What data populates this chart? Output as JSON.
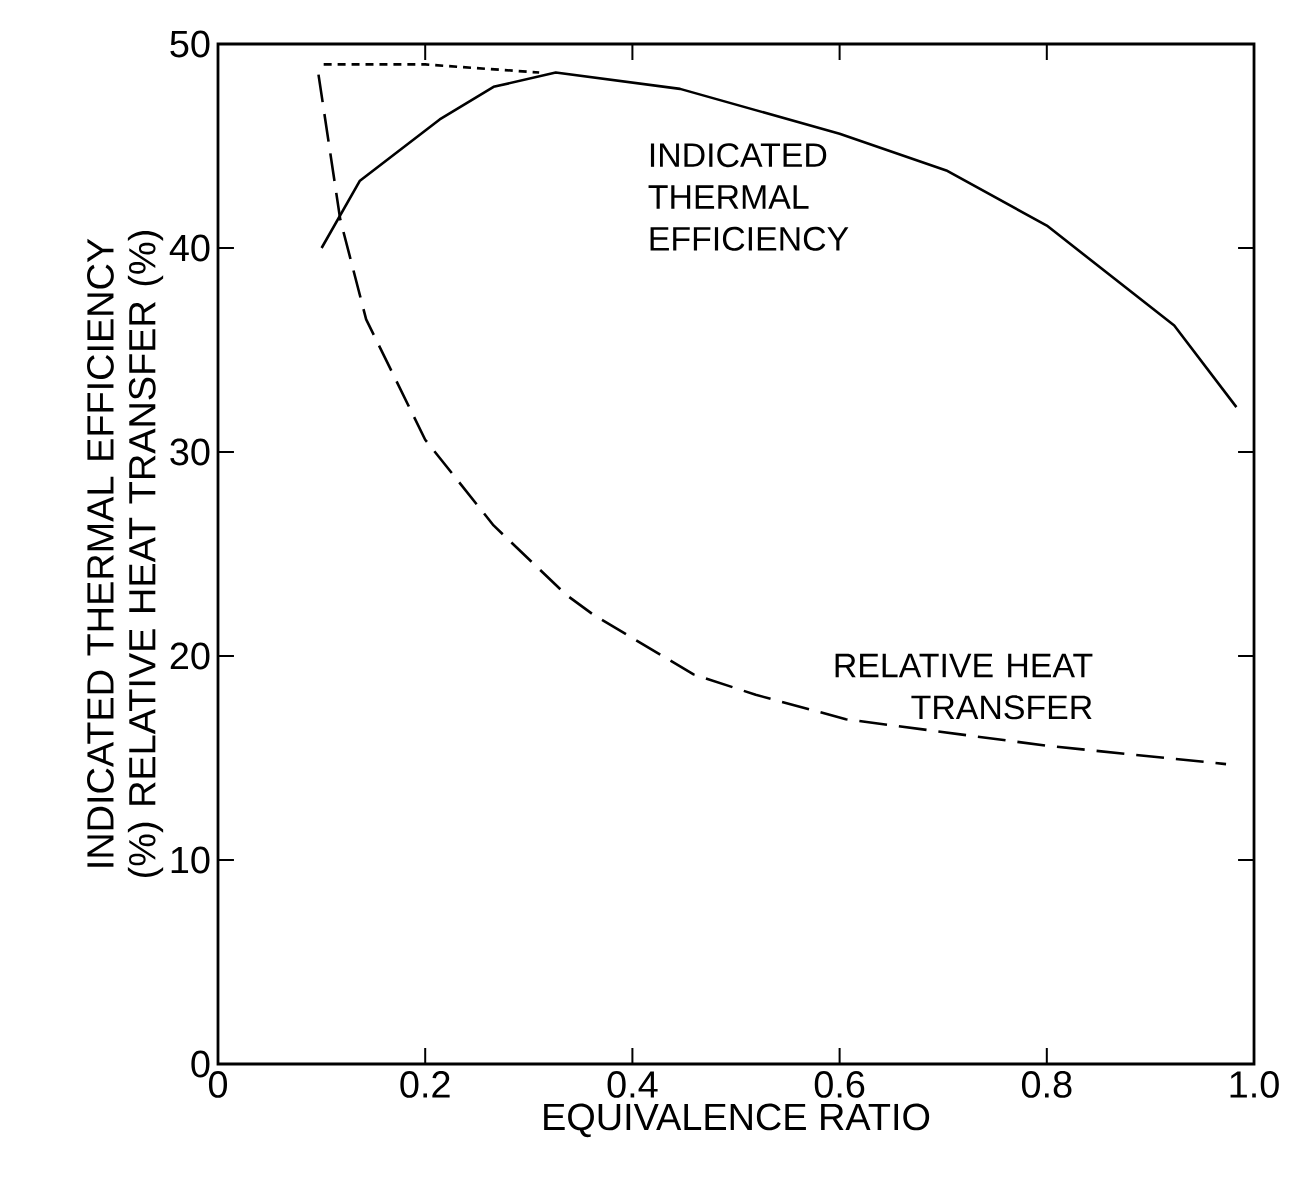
{
  "chart_data": {
    "type": "line",
    "xlabel": "EQUIVALENCE RATIO",
    "ylabel": "INDICATED THERMAL EFFICIENCY (%) RELATIVE HEAT TRANSFER (%)",
    "xlim": [
      0,
      1.0
    ],
    "ylim": [
      0,
      50
    ],
    "xticks": [
      0,
      0.2,
      0.4,
      0.6,
      0.8,
      {
        "value": 1.0,
        "label": "1.0"
      }
    ],
    "yticks": [
      0,
      10,
      20,
      30,
      40,
      50
    ],
    "grid": false,
    "legend": false,
    "marker": "none",
    "series": [
      {
        "name": "INDICATED THERMAL EFFICIENCY",
        "color": "#000000",
        "line_style": "solid",
        "x": [
          0.1,
          0.137,
          0.214,
          0.266,
          0.326,
          0.446,
          0.6,
          0.703,
          0.8,
          0.923,
          0.983
        ],
        "values": [
          40,
          43.3,
          46.3,
          47.9,
          48.6,
          47.8,
          45.6,
          43.8,
          41.1,
          36.2,
          32.2
        ]
      },
      {
        "name": "RELATIVE HEAT TRANSFER",
        "color": "#000000",
        "line_style": "dashed",
        "x": [
          0.097,
          0.118,
          0.143,
          0.2,
          0.266,
          0.336,
          0.363,
          0.459,
          0.519,
          0.606,
          0.8,
          0.973
        ],
        "values": [
          48.5,
          41.4,
          36.5,
          30.6,
          26.4,
          23.0,
          22.0,
          19.1,
          18.1,
          16.9,
          15.6,
          14.7
        ]
      },
      {
        "color": "#000000",
        "line_style": "dotted",
        "x": [
          0.102,
          0.2,
          0.31
        ],
        "values": [
          49.0,
          49.0,
          48.6
        ]
      }
    ]
  }
}
